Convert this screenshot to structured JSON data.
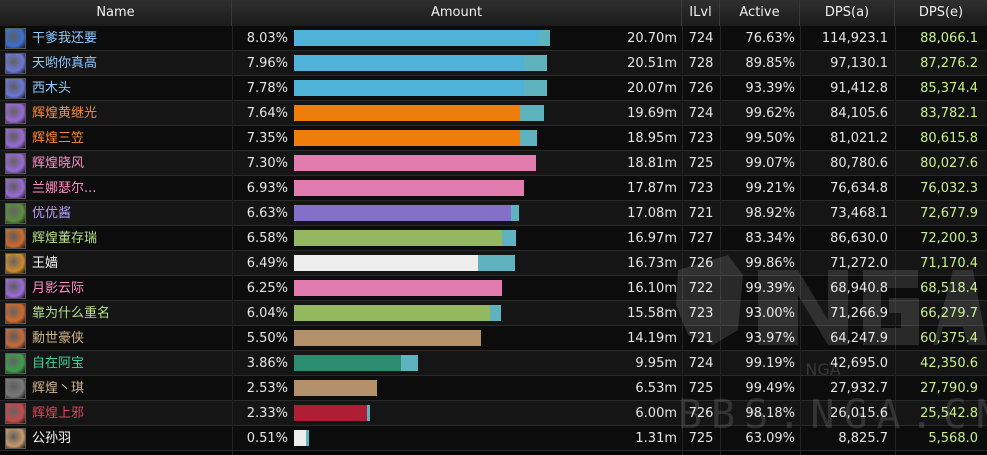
{
  "headers": {
    "name": "Name",
    "amount": "Amount",
    "ilvl": "ILvl",
    "active": "Active",
    "dps_a": "DPS(a)",
    "dps_e": "DPS(e)"
  },
  "watermark": {
    "brand": "NGA",
    "url": "BBS.NGA.CN"
  },
  "rows": [
    {
      "name": "干爹我还要",
      "name_color": "#8fc9ff",
      "icon": "frost-mage-icon",
      "icon_color": "#3a6fd8",
      "pct": "8.03%",
      "bar_color": "#4fb3d9",
      "bar_fill": 0.8,
      "bar_extra": 0.035,
      "amount": "20.70m",
      "ilvl": "724",
      "active": "76.63%",
      "dps_a": "114,923.1",
      "dps_e": "88,066.1"
    },
    {
      "name": "天哟你真高",
      "name_color": "#8fc9ff",
      "icon": "arcane-mage-icon",
      "icon_color": "#6a78d8",
      "pct": "7.96%",
      "bar_color": "#4fb3d9",
      "bar_fill": 0.75,
      "bar_extra": 0.075,
      "amount": "20.51m",
      "ilvl": "728",
      "active": "89.85%",
      "dps_a": "97,130.1",
      "dps_e": "87,276.2"
    },
    {
      "name": "西木头",
      "name_color": "#8fc9ff",
      "icon": "arcane-mage-icon",
      "icon_color": "#6a78d8",
      "pct": "7.78%",
      "bar_color": "#4fb3d9",
      "bar_fill": 0.75,
      "bar_extra": 0.075,
      "amount": "20.07m",
      "ilvl": "726",
      "active": "93.39%",
      "dps_a": "91,412.8",
      "dps_e": "85,374.4"
    },
    {
      "name": "辉煌黄继光",
      "name_color": "#ff8a3a",
      "icon": "balance-druid-icon",
      "icon_color": "#9a6ad8",
      "pct": "7.64%",
      "bar_color": "#ef7d0c",
      "bar_fill": 0.74,
      "bar_extra": 0.08,
      "amount": "19.69m",
      "ilvl": "724",
      "active": "99.62%",
      "dps_a": "84,105.6",
      "dps_e": "83,782.1"
    },
    {
      "name": "辉煌三笠",
      "name_color": "#ff8a3a",
      "icon": "balance-druid-icon",
      "icon_color": "#9a6ad8",
      "pct": "7.35%",
      "bar_color": "#ef7d0c",
      "bar_fill": 0.74,
      "bar_extra": 0.055,
      "amount": "18.95m",
      "ilvl": "723",
      "active": "99.50%",
      "dps_a": "81,021.2",
      "dps_e": "80,615.8"
    },
    {
      "name": "辉煌晓风",
      "name_color": "#ff8ec6",
      "icon": "paladin-icon",
      "icon_color": "#9a6ad8",
      "pct": "7.30%",
      "bar_color": "#e27cae",
      "bar_fill": 0.79,
      "bar_extra": 0.0,
      "amount": "18.81m",
      "ilvl": "725",
      "active": "99.07%",
      "dps_a": "80,780.6",
      "dps_e": "80,027.6"
    },
    {
      "name": "兰娜瑟尔...",
      "name_color": "#ff8ec6",
      "icon": "paladin-icon",
      "icon_color": "#9a6ad8",
      "pct": "6.93%",
      "bar_color": "#e27cae",
      "bar_fill": 0.75,
      "bar_extra": 0.0,
      "amount": "17.87m",
      "ilvl": "723",
      "active": "99.21%",
      "dps_a": "76,634.8",
      "dps_e": "76,032.3"
    },
    {
      "name": "优优酱",
      "name_color": "#b59aff",
      "icon": "warlock-icon",
      "icon_color": "#5a8f3a",
      "pct": "6.63%",
      "bar_color": "#8470c8",
      "bar_fill": 0.71,
      "bar_extra": 0.025,
      "amount": "17.08m",
      "ilvl": "721",
      "active": "98.92%",
      "dps_a": "73,468.1",
      "dps_e": "72,677.9"
    },
    {
      "name": "辉煌董存瑞",
      "name_color": "#b6e08a",
      "icon": "hunter-icon",
      "icon_color": "#d06a2a",
      "pct": "6.58%",
      "bar_color": "#94b860",
      "bar_fill": 0.68,
      "bar_extra": 0.045,
      "amount": "16.97m",
      "ilvl": "727",
      "active": "83.34%",
      "dps_a": "86,630.0",
      "dps_e": "72,200.3"
    },
    {
      "name": "王嫱",
      "name_color": "#ffffff",
      "icon": "priest-icon",
      "icon_color": "#d08a2a",
      "pct": "6.49%",
      "bar_color": "#eeeeee",
      "bar_fill": 0.6,
      "bar_extra": 0.12,
      "amount": "16.73m",
      "ilvl": "726",
      "active": "99.86%",
      "dps_a": "71,272.0",
      "dps_e": "71,170.4"
    },
    {
      "name": "月影云际",
      "name_color": "#ff8ec6",
      "icon": "paladin-icon",
      "icon_color": "#9a6ad8",
      "pct": "6.25%",
      "bar_color": "#e27cae",
      "bar_fill": 0.68,
      "bar_extra": 0.0,
      "amount": "16.10m",
      "ilvl": "722",
      "active": "99.39%",
      "dps_a": "68,940.8",
      "dps_e": "68,518.4"
    },
    {
      "name": "靠为什么重名",
      "name_color": "#b6e08a",
      "icon": "hunter-icon",
      "icon_color": "#d06a2a",
      "pct": "6.04%",
      "bar_color": "#94b860",
      "bar_fill": 0.64,
      "bar_extra": 0.035,
      "amount": "15.58m",
      "ilvl": "723",
      "active": "93.00%",
      "dps_a": "71,266.9",
      "dps_e": "66,279.7"
    },
    {
      "name": "勳世豪侠",
      "name_color": "#d2b48c",
      "icon": "warrior-icon",
      "icon_color": "#c86a3a",
      "pct": "5.50%",
      "bar_color": "#b3906a",
      "bar_fill": 0.61,
      "bar_extra": 0.0,
      "amount": "14.19m",
      "ilvl": "721",
      "active": "93.97%",
      "dps_a": "64,247.9",
      "dps_e": "60,375.4"
    },
    {
      "name": "自在阿宝",
      "name_color": "#3cd6a0",
      "icon": "monk-icon",
      "icon_color": "#3aa04a",
      "pct": "3.86%",
      "bar_color": "#2c8c70",
      "bar_fill": 0.35,
      "bar_extra": 0.055,
      "amount": "9.95m",
      "ilvl": "724",
      "active": "99.19%",
      "dps_a": "42,695.0",
      "dps_e": "42,350.6"
    },
    {
      "name": "辉煌丶琪",
      "name_color": "#d2b48c",
      "icon": "warrior-icon",
      "icon_color": "#7a7a7a",
      "pct": "2.53%",
      "bar_color": "#b3906a",
      "bar_fill": 0.27,
      "bar_extra": 0.0,
      "amount": "6.53m",
      "ilvl": "725",
      "active": "99.49%",
      "dps_a": "27,932.7",
      "dps_e": "27,790.9"
    },
    {
      "name": "辉煌上邪",
      "name_color": "#e0455a",
      "icon": "death-knight-icon",
      "icon_color": "#c84a4a",
      "pct": "2.33%",
      "bar_color": "#b01e35",
      "bar_fill": 0.24,
      "bar_extra": 0.01,
      "amount": "6.00m",
      "ilvl": "726",
      "active": "98.18%",
      "dps_a": "26,015.6",
      "dps_e": "25,542.8"
    },
    {
      "name": "公孙羽",
      "name_color": "#ffffff",
      "icon": "priest-icon",
      "icon_color": "#c89a6a",
      "pct": "0.51%",
      "bar_color": "#eeeeee",
      "bar_fill": 0.04,
      "bar_extra": 0.01,
      "amount": "1.31m",
      "ilvl": "725",
      "active": "63.09%",
      "dps_a": "8,825.7",
      "dps_e": "5,568.0"
    }
  ]
}
